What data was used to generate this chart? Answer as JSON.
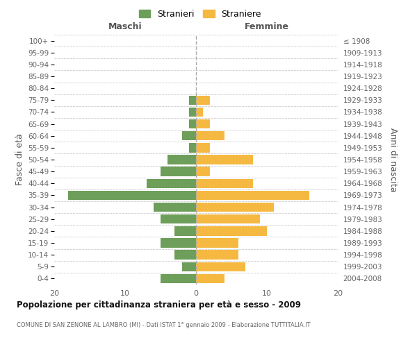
{
  "age_groups": [
    "0-4",
    "5-9",
    "10-14",
    "15-19",
    "20-24",
    "25-29",
    "30-34",
    "35-39",
    "40-44",
    "45-49",
    "50-54",
    "55-59",
    "60-64",
    "65-69",
    "70-74",
    "75-79",
    "80-84",
    "85-89",
    "90-94",
    "95-99",
    "100+"
  ],
  "birth_years": [
    "2004-2008",
    "1999-2003",
    "1994-1998",
    "1989-1993",
    "1984-1988",
    "1979-1983",
    "1974-1978",
    "1969-1973",
    "1964-1968",
    "1959-1963",
    "1954-1958",
    "1949-1953",
    "1944-1948",
    "1939-1943",
    "1934-1938",
    "1929-1933",
    "1924-1928",
    "1919-1923",
    "1914-1918",
    "1909-1913",
    "≤ 1908"
  ],
  "males": [
    5,
    2,
    3,
    5,
    3,
    5,
    6,
    18,
    7,
    5,
    4,
    1,
    2,
    1,
    1,
    1,
    0,
    0,
    0,
    0,
    0
  ],
  "females": [
    4,
    7,
    6,
    6,
    10,
    9,
    11,
    16,
    8,
    2,
    8,
    2,
    4,
    2,
    1,
    2,
    0,
    0,
    0,
    0,
    0
  ],
  "male_color": "#6d9e5a",
  "female_color": "#f5b942",
  "background_color": "#ffffff",
  "grid_color": "#cccccc",
  "title": "Popolazione per cittadinanza straniera per età e sesso - 2009",
  "subtitle": "COMUNE DI SAN ZENONE AL LAMBRO (MI) - Dati ISTAT 1° gennaio 2009 - Elaborazione TUTTITALIA.IT",
  "ylabel_left": "Fasce di età",
  "ylabel_right": "Anni di nascita",
  "xlabel_left": "Maschi",
  "xlabel_right": "Femmine",
  "legend_males": "Stranieri",
  "legend_females": "Straniere",
  "xlim": 20
}
